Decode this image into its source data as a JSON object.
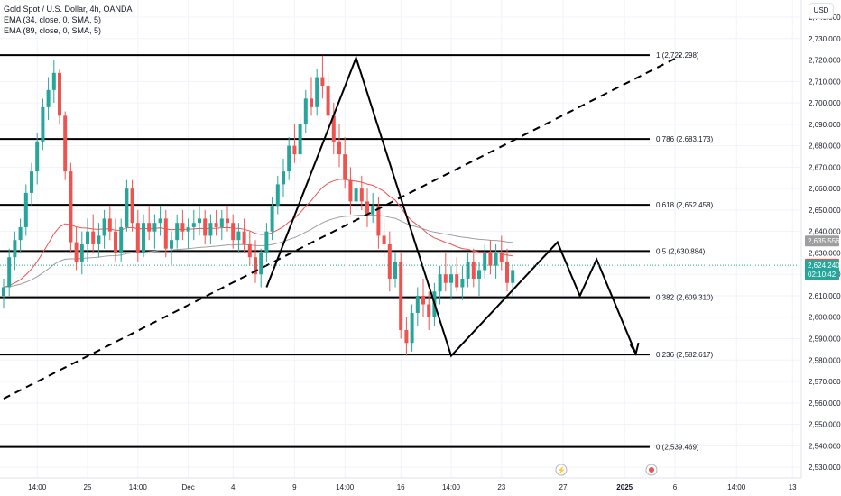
{
  "legend": {
    "title": "Gold Spot / U.S. Dollar, 4h, OANDA",
    "ema1": "EMA (34, close, 0, SMA, 5)",
    "ema2": "EMA (89, close, 0, SMA, 5)"
  },
  "currency_button": "USD",
  "colors": {
    "up": "#26a69a",
    "down": "#ef5350",
    "ema_fast": "#ef5350",
    "ema_slow": "#9e9e9e",
    "lines": "#000000",
    "grid": "#f0f3fa",
    "text": "#131722"
  },
  "chart_data": {
    "type": "candlestick",
    "symbol": "Gold Spot / U.S. Dollar",
    "timeframe": "4h",
    "ylim": [
      2525,
      2748
    ],
    "y_ticks": [
      2530,
      2540,
      2550,
      2560,
      2570,
      2580,
      2590,
      2600,
      2610,
      2620,
      2630,
      2640,
      2650,
      2660,
      2670,
      2680,
      2690,
      2700,
      2710,
      2720,
      2730,
      2740
    ],
    "x_ticks": [
      {
        "label": "14:00",
        "bar": 6
      },
      {
        "label": "25",
        "bar": 15
      },
      {
        "label": "14:00",
        "bar": 24
      },
      {
        "label": "Dec",
        "bar": 33
      },
      {
        "label": "4",
        "bar": 41
      },
      {
        "label": "9",
        "bar": 52
      },
      {
        "label": "14:00",
        "bar": 61
      },
      {
        "label": "16",
        "bar": 71
      },
      {
        "label": "14:00",
        "bar": 80
      },
      {
        "label": "23",
        "bar": 89
      },
      {
        "label": "27",
        "bar": 100
      },
      {
        "label": "2025",
        "bar": 111
      },
      {
        "label": "6",
        "bar": 120
      },
      {
        "label": "14:00",
        "bar": 131
      },
      {
        "label": "13",
        "bar": 141
      }
    ],
    "fib_levels": [
      {
        "label": "1 (2,722.298)",
        "price": 2722.298
      },
      {
        "label": "0.786 (2,683.173)",
        "price": 2683.173
      },
      {
        "label": "0.618 (2,652.458)",
        "price": 2652.458
      },
      {
        "label": "0.5 (2,630.884)",
        "price": 2630.884
      },
      {
        "label": "0.382 (2,609.310)",
        "price": 2609.31
      },
      {
        "label": "0.236 (2,582.617)",
        "price": 2582.617
      },
      {
        "label": "0 (2,539.469)",
        "price": 2539.469
      }
    ],
    "trendline": {
      "from": {
        "bar": 0,
        "price": 2562
      },
      "to": {
        "bar": 121,
        "price": 2722
      },
      "style": "dashed"
    },
    "zigzag": [
      {
        "bar": 47,
        "price": 2614
      },
      {
        "bar": 63,
        "price": 2721
      },
      {
        "bar": 80,
        "price": 2582
      },
      {
        "bar": 99,
        "price": 2635
      },
      {
        "bar": 103,
        "price": 2610
      },
      {
        "bar": 106,
        "price": 2627
      },
      {
        "bar": 113,
        "price": 2583
      }
    ],
    "price_tags": [
      {
        "price": 2635.556,
        "text": "2,635.556",
        "bg": "#9e9e9e"
      },
      {
        "price": 2624.752,
        "text": "2,624.752",
        "bg": "#ef5350"
      },
      {
        "price": 2622.035,
        "text": "2,622.035",
        "bg": "#787b86"
      }
    ],
    "last_price": {
      "price": 2624.24,
      "text": "2,624.240",
      "countdown": "02:10:42",
      "bg": "#26a69a"
    },
    "candles": [
      [
        2610,
        2618,
        2604,
        2614
      ],
      [
        2614,
        2632,
        2610,
        2628
      ],
      [
        2628,
        2640,
        2622,
        2636
      ],
      [
        2636,
        2646,
        2630,
        2642
      ],
      [
        2642,
        2662,
        2638,
        2658
      ],
      [
        2658,
        2672,
        2652,
        2668
      ],
      [
        2668,
        2686,
        2662,
        2682
      ],
      [
        2682,
        2702,
        2678,
        2698
      ],
      [
        2698,
        2712,
        2692,
        2706
      ],
      [
        2706,
        2720,
        2700,
        2714
      ],
      [
        2714,
        2716,
        2690,
        2694
      ],
      [
        2694,
        2696,
        2664,
        2668
      ],
      [
        2668,
        2672,
        2630,
        2635
      ],
      [
        2635,
        2642,
        2622,
        2626
      ],
      [
        2626,
        2640,
        2620,
        2634
      ],
      [
        2634,
        2646,
        2626,
        2640
      ],
      [
        2640,
        2648,
        2630,
        2634
      ],
      [
        2634,
        2644,
        2628,
        2638
      ],
      [
        2638,
        2650,
        2632,
        2646
      ],
      [
        2646,
        2652,
        2636,
        2640
      ],
      [
        2640,
        2646,
        2626,
        2630
      ],
      [
        2630,
        2646,
        2626,
        2642
      ],
      [
        2642,
        2664,
        2640,
        2660
      ],
      [
        2660,
        2664,
        2640,
        2644
      ],
      [
        2644,
        2650,
        2626,
        2630
      ],
      [
        2630,
        2648,
        2628,
        2644
      ],
      [
        2644,
        2652,
        2636,
        2640
      ],
      [
        2640,
        2648,
        2632,
        2644
      ],
      [
        2644,
        2652,
        2638,
        2646
      ],
      [
        2646,
        2650,
        2628,
        2632
      ],
      [
        2632,
        2640,
        2624,
        2636
      ],
      [
        2636,
        2648,
        2632,
        2644
      ],
      [
        2644,
        2650,
        2636,
        2640
      ],
      [
        2640,
        2646,
        2632,
        2642
      ],
      [
        2642,
        2650,
        2636,
        2644
      ],
      [
        2644,
        2652,
        2638,
        2646
      ],
      [
        2646,
        2650,
        2634,
        2638
      ],
      [
        2638,
        2648,
        2634,
        2644
      ],
      [
        2644,
        2650,
        2638,
        2642
      ],
      [
        2642,
        2650,
        2636,
        2646
      ],
      [
        2646,
        2652,
        2640,
        2644
      ],
      [
        2644,
        2648,
        2632,
        2636
      ],
      [
        2636,
        2644,
        2630,
        2640
      ],
      [
        2640,
        2646,
        2630,
        2634
      ],
      [
        2634,
        2640,
        2624,
        2628
      ],
      [
        2628,
        2636,
        2616,
        2620
      ],
      [
        2620,
        2632,
        2614,
        2630
      ],
      [
        2630,
        2644,
        2626,
        2640
      ],
      [
        2640,
        2656,
        2636,
        2652
      ],
      [
        2652,
        2666,
        2648,
        2662
      ],
      [
        2662,
        2674,
        2656,
        2668
      ],
      [
        2668,
        2684,
        2664,
        2680
      ],
      [
        2680,
        2690,
        2672,
        2676
      ],
      [
        2676,
        2694,
        2672,
        2690
      ],
      [
        2690,
        2706,
        2686,
        2702
      ],
      [
        2702,
        2712,
        2694,
        2698
      ],
      [
        2698,
        2716,
        2694,
        2712
      ],
      [
        2712,
        2722,
        2702,
        2708
      ],
      [
        2708,
        2714,
        2690,
        2694
      ],
      [
        2694,
        2700,
        2676,
        2682
      ],
      [
        2682,
        2690,
        2670,
        2676
      ],
      [
        2676,
        2684,
        2660,
        2664
      ],
      [
        2664,
        2670,
        2648,
        2654
      ],
      [
        2654,
        2664,
        2650,
        2660
      ],
      [
        2660,
        2666,
        2650,
        2654
      ],
      [
        2654,
        2660,
        2642,
        2648
      ],
      [
        2648,
        2658,
        2644,
        2652
      ],
      [
        2652,
        2656,
        2632,
        2638
      ],
      [
        2638,
        2646,
        2628,
        2634
      ],
      [
        2634,
        2640,
        2612,
        2618
      ],
      [
        2618,
        2630,
        2614,
        2626
      ],
      [
        2626,
        2630,
        2590,
        2594
      ],
      [
        2594,
        2600,
        2582,
        2588
      ],
      [
        2588,
        2606,
        2584,
        2602
      ],
      [
        2602,
        2614,
        2596,
        2610
      ],
      [
        2610,
        2618,
        2600,
        2606
      ],
      [
        2606,
        2612,
        2594,
        2600
      ],
      [
        2600,
        2616,
        2596,
        2612
      ],
      [
        2612,
        2624,
        2606,
        2620
      ],
      [
        2620,
        2630,
        2612,
        2616
      ],
      [
        2616,
        2624,
        2608,
        2620
      ],
      [
        2620,
        2628,
        2612,
        2614
      ],
      [
        2614,
        2624,
        2608,
        2618
      ],
      [
        2618,
        2630,
        2614,
        2626
      ],
      [
        2626,
        2632,
        2614,
        2618
      ],
      [
        2618,
        2626,
        2610,
        2622
      ],
      [
        2622,
        2634,
        2618,
        2630
      ],
      [
        2630,
        2636,
        2620,
        2624
      ],
      [
        2624,
        2634,
        2618,
        2630
      ],
      [
        2630,
        2638,
        2622,
        2626
      ],
      [
        2626,
        2632,
        2612,
        2616
      ],
      [
        2616,
        2624,
        2610,
        2622
      ]
    ]
  }
}
